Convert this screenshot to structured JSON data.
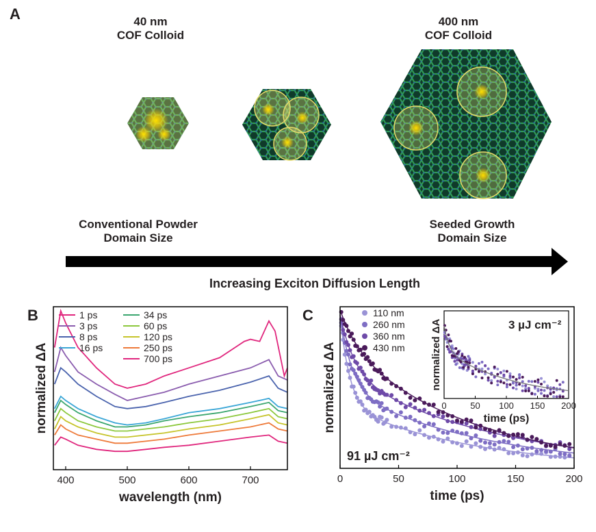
{
  "panel_a": {
    "letter": "A",
    "label_small": [
      "40 nm",
      "COF Colloid"
    ],
    "label_large": [
      "400 nm",
      "COF Colloid"
    ],
    "left_caption": [
      "Conventional Powder",
      "Domain Size"
    ],
    "right_caption": [
      "Seeded Growth",
      "Domain Size"
    ],
    "arrow_caption": "Increasing Exciton Diffusion Length",
    "colors": {
      "lattice": "#1f6b3e",
      "node": "#2a4f8a",
      "exciton": "#ffd200",
      "circle": "#e7dc6a"
    }
  },
  "chart_data": [
    {
      "panel": "B",
      "type": "line",
      "xlabel": "wavelength (nm)",
      "ylabel": "normalized ΔA",
      "xlim": [
        380,
        760
      ],
      "xticks": [
        400,
        500,
        600,
        700
      ],
      "series": [
        {
          "name": "1 ps",
          "color": "#e0267d",
          "points": [
            [
              382,
              0.7
            ],
            [
              392,
              0.88
            ],
            [
              400,
              0.82
            ],
            [
              420,
              0.7
            ],
            [
              450,
              0.6
            ],
            [
              480,
              0.52
            ],
            [
              500,
              0.5
            ],
            [
              530,
              0.52
            ],
            [
              560,
              0.56
            ],
            [
              600,
              0.6
            ],
            [
              650,
              0.65
            ],
            [
              690,
              0.73
            ],
            [
              700,
              0.74
            ],
            [
              715,
              0.73
            ],
            [
              730,
              0.83
            ],
            [
              740,
              0.78
            ],
            [
              755,
              0.56
            ],
            [
              760,
              0.6
            ]
          ]
        },
        {
          "name": "3 ps",
          "color": "#8a5cae",
          "points": [
            [
              382,
              0.58
            ],
            [
              392,
              0.7
            ],
            [
              400,
              0.66
            ],
            [
              420,
              0.58
            ],
            [
              450,
              0.52
            ],
            [
              480,
              0.47
            ],
            [
              500,
              0.44
            ],
            [
              530,
              0.46
            ],
            [
              560,
              0.48
            ],
            [
              600,
              0.52
            ],
            [
              650,
              0.56
            ],
            [
              700,
              0.6
            ],
            [
              730,
              0.64
            ],
            [
              745,
              0.56
            ],
            [
              760,
              0.54
            ]
          ]
        },
        {
          "name": "8 ps",
          "color": "#4a63ad",
          "points": [
            [
              382,
              0.52
            ],
            [
              392,
              0.6
            ],
            [
              400,
              0.58
            ],
            [
              420,
              0.52
            ],
            [
              450,
              0.46
            ],
            [
              480,
              0.41
            ],
            [
              500,
              0.4
            ],
            [
              530,
              0.41
            ],
            [
              560,
              0.43
            ],
            [
              600,
              0.46
            ],
            [
              650,
              0.49
            ],
            [
              700,
              0.53
            ],
            [
              730,
              0.56
            ],
            [
              745,
              0.5
            ],
            [
              760,
              0.48
            ]
          ]
        },
        {
          "name": "16 ps",
          "color": "#3aa6d6",
          "points": [
            [
              382,
              0.4
            ],
            [
              392,
              0.46
            ],
            [
              400,
              0.44
            ],
            [
              420,
              0.4
            ],
            [
              450,
              0.36
            ],
            [
              480,
              0.33
            ],
            [
              500,
              0.32
            ],
            [
              530,
              0.33
            ],
            [
              560,
              0.35
            ],
            [
              600,
              0.38
            ],
            [
              650,
              0.4
            ],
            [
              700,
              0.43
            ],
            [
              730,
              0.45
            ],
            [
              745,
              0.41
            ],
            [
              760,
              0.4
            ]
          ]
        },
        {
          "name": "34 ps",
          "color": "#3aa66e",
          "points": [
            [
              382,
              0.38
            ],
            [
              392,
              0.44
            ],
            [
              400,
              0.42
            ],
            [
              420,
              0.38
            ],
            [
              450,
              0.34
            ],
            [
              480,
              0.31
            ],
            [
              500,
              0.31
            ],
            [
              530,
              0.32
            ],
            [
              560,
              0.34
            ],
            [
              600,
              0.36
            ],
            [
              650,
              0.38
            ],
            [
              700,
              0.41
            ],
            [
              730,
              0.43
            ],
            [
              745,
              0.39
            ],
            [
              760,
              0.38
            ]
          ]
        },
        {
          "name": "60 ps",
          "color": "#8cc83c",
          "points": [
            [
              382,
              0.34
            ],
            [
              392,
              0.4
            ],
            [
              400,
              0.38
            ],
            [
              420,
              0.34
            ],
            [
              450,
              0.31
            ],
            [
              480,
              0.29
            ],
            [
              500,
              0.29
            ],
            [
              530,
              0.3
            ],
            [
              560,
              0.31
            ],
            [
              600,
              0.33
            ],
            [
              650,
              0.35
            ],
            [
              700,
              0.38
            ],
            [
              730,
              0.4
            ],
            [
              745,
              0.36
            ],
            [
              760,
              0.35
            ]
          ]
        },
        {
          "name": "120 ps",
          "color": "#c6c42a",
          "points": [
            [
              382,
              0.3
            ],
            [
              392,
              0.36
            ],
            [
              400,
              0.34
            ],
            [
              420,
              0.31
            ],
            [
              450,
              0.28
            ],
            [
              480,
              0.26
            ],
            [
              500,
              0.26
            ],
            [
              530,
              0.27
            ],
            [
              560,
              0.28
            ],
            [
              600,
              0.3
            ],
            [
              650,
              0.32
            ],
            [
              700,
              0.35
            ],
            [
              730,
              0.37
            ],
            [
              745,
              0.33
            ],
            [
              760,
              0.32
            ]
          ]
        },
        {
          "name": "250 ps",
          "color": "#ee7a3a",
          "points": [
            [
              382,
              0.27
            ],
            [
              392,
              0.32
            ],
            [
              400,
              0.3
            ],
            [
              420,
              0.27
            ],
            [
              450,
              0.25
            ],
            [
              480,
              0.23
            ],
            [
              500,
              0.23
            ],
            [
              530,
              0.24
            ],
            [
              560,
              0.25
            ],
            [
              600,
              0.27
            ],
            [
              650,
              0.29
            ],
            [
              700,
              0.31
            ],
            [
              730,
              0.33
            ],
            [
              745,
              0.3
            ],
            [
              760,
              0.29
            ]
          ]
        },
        {
          "name": "700 ps",
          "color": "#e0267d",
          "points": [
            [
              382,
              0.22
            ],
            [
              392,
              0.26
            ],
            [
              400,
              0.25
            ],
            [
              420,
              0.22
            ],
            [
              450,
              0.2
            ],
            [
              480,
              0.19
            ],
            [
              500,
              0.19
            ],
            [
              530,
              0.2
            ],
            [
              560,
              0.21
            ],
            [
              600,
              0.22
            ],
            [
              650,
              0.24
            ],
            [
              700,
              0.26
            ],
            [
              730,
              0.27
            ],
            [
              745,
              0.24
            ],
            [
              760,
              0.23
            ]
          ]
        }
      ]
    },
    {
      "panel": "C",
      "type": "scatter",
      "xlabel": "time (ps)",
      "ylabel": "normalized ΔA",
      "xlim": [
        0,
        200
      ],
      "xticks": [
        0,
        50,
        100,
        150,
        200
      ],
      "annotation": "91 µJ cm⁻²",
      "series": [
        {
          "name": "110 nm",
          "color": "#9a93d6",
          "amp1": 0.55,
          "tau1": 8,
          "amp2": 0.4,
          "tau2": 110
        },
        {
          "name": "260 nm",
          "color": "#7e6ec4",
          "amp1": 0.45,
          "tau1": 10,
          "amp2": 0.5,
          "tau2": 120
        },
        {
          "name": "360 nm",
          "color": "#6e4aa8",
          "amp1": 0.35,
          "tau1": 12,
          "amp2": 0.6,
          "tau2": 130
        },
        {
          "name": "430 nm",
          "color": "#4a1a5a",
          "amp1": 0.2,
          "tau1": 15,
          "amp2": 0.78,
          "tau2": 110
        }
      ],
      "inset": {
        "xlabel": "time (ps)",
        "ylabel": "normalized ΔA",
        "xlim": [
          0,
          200
        ],
        "xticks": [
          0,
          50,
          100,
          150,
          200
        ],
        "annotation": "3 µJ cm⁻²"
      }
    }
  ]
}
